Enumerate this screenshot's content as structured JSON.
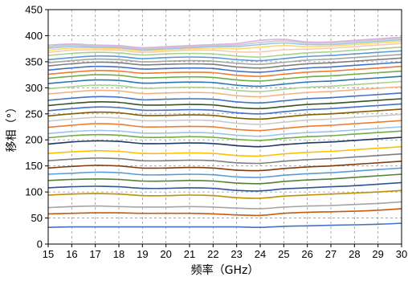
{
  "chart_data": {
    "type": "line",
    "title": "",
    "xlabel": "频率（GHz）",
    "ylabel": "移相（°）",
    "xlim": [
      15,
      30
    ],
    "ylim": [
      0,
      450
    ],
    "x_ticks": [
      15,
      16,
      17,
      18,
      19,
      20,
      21,
      22,
      23,
      24,
      25,
      26,
      27,
      28,
      29,
      30
    ],
    "y_ticks": [
      0,
      50,
      100,
      150,
      200,
      250,
      300,
      350,
      400,
      450
    ],
    "x_tick_labels": [
      "15",
      "16",
      "17",
      "18",
      "19",
      "20",
      "21",
      "22",
      "23",
      "24",
      "25",
      "26",
      "27",
      "28",
      "29",
      "30"
    ],
    "y_tick_labels": [
      "0",
      "50",
      "100",
      "150",
      "200",
      "250",
      "300",
      "350",
      "400",
      "450"
    ],
    "grid": true,
    "legend": "none",
    "x": [
      15,
      16,
      17,
      18,
      19,
      20,
      21,
      22,
      23,
      24,
      25,
      26,
      27,
      28,
      29,
      30
    ],
    "series": [
      {
        "color": "#4472c4",
        "values": [
          32,
          33,
          33,
          33,
          33,
          33,
          33,
          33,
          33,
          32,
          34,
          35,
          36,
          37,
          38,
          40
        ]
      },
      {
        "color": "#c55a11",
        "values": [
          58,
          59,
          60,
          60,
          59,
          59,
          59,
          58,
          56,
          55,
          59,
          61,
          62,
          63,
          65,
          68
        ]
      },
      {
        "color": "#a5a5a5",
        "values": [
          70,
          72,
          73,
          72,
          71,
          71,
          72,
          71,
          69,
          68,
          71,
          73,
          74,
          76,
          78,
          81
        ]
      },
      {
        "color": "#bf9000",
        "values": [
          94,
          96,
          97,
          96,
          93,
          93,
          94,
          93,
          89,
          88,
          92,
          94,
          96,
          98,
          100,
          103
        ]
      },
      {
        "color": "#2f5597",
        "values": [
          108,
          110,
          111,
          110,
          107,
          107,
          108,
          107,
          103,
          102,
          106,
          108,
          110,
          112,
          115,
          118
        ]
      },
      {
        "color": "#548235",
        "values": [
          122,
          124,
          125,
          124,
          121,
          121,
          122,
          121,
          117,
          116,
          120,
          123,
          125,
          128,
          131,
          134
        ]
      },
      {
        "color": "#5b9bd5",
        "values": [
          134,
          136,
          138,
          137,
          133,
          133,
          134,
          133,
          129,
          128,
          132,
          135,
          137,
          140,
          143,
          146
        ]
      },
      {
        "color": "#843c0c",
        "values": [
          146,
          149,
          151,
          150,
          146,
          146,
          147,
          146,
          142,
          141,
          145,
          148,
          150,
          153,
          156,
          159
        ]
      },
      {
        "color": "#7f7f7f",
        "values": [
          160,
          163,
          165,
          164,
          160,
          160,
          161,
          160,
          156,
          155,
          159,
          162,
          164,
          167,
          170,
          173
        ]
      },
      {
        "color": "#ffc000",
        "values": [
          174,
          177,
          179,
          178,
          174,
          174,
          175,
          174,
          170,
          169,
          173,
          176,
          178,
          181,
          184,
          187
        ]
      },
      {
        "color": "#1f3864",
        "values": [
          192,
          196,
          198,
          197,
          193,
          193,
          194,
          193,
          189,
          187,
          191,
          194,
          196,
          199,
          202,
          205
        ]
      },
      {
        "color": "#70ad47",
        "values": [
          204,
          208,
          210,
          209,
          205,
          205,
          206,
          205,
          201,
          199,
          203,
          206,
          208,
          211,
          214,
          217
        ]
      },
      {
        "color": "#9dc3e6",
        "values": [
          212,
          216,
          218,
          217,
          213,
          213,
          214,
          213,
          209,
          207,
          211,
          214,
          216,
          219,
          222,
          225
        ]
      },
      {
        "color": "#ed7d31",
        "values": [
          224,
          228,
          231,
          230,
          225,
          225,
          226,
          225,
          220,
          218,
          222,
          226,
          228,
          231,
          234,
          237
        ]
      },
      {
        "color": "#c9c9c9",
        "values": [
          236,
          240,
          243,
          242,
          237,
          237,
          238,
          237,
          232,
          230,
          234,
          238,
          240,
          243,
          246,
          249
        ]
      },
      {
        "color": "#806000",
        "values": [
          246,
          250,
          253,
          252,
          247,
          247,
          248,
          247,
          242,
          240,
          244,
          248,
          250,
          253,
          256,
          259
        ]
      },
      {
        "color": "#4472c4",
        "values": [
          256,
          260,
          263,
          262,
          257,
          257,
          258,
          257,
          252,
          250,
          254,
          258,
          260,
          263,
          266,
          269
        ]
      },
      {
        "color": "#375623",
        "values": [
          266,
          270,
          273,
          272,
          267,
          267,
          268,
          267,
          262,
          260,
          264,
          268,
          270,
          273,
          276,
          279
        ]
      },
      {
        "color": "#4472c4",
        "values": [
          276,
          280,
          283,
          282,
          277,
          278,
          279,
          278,
          273,
          271,
          275,
          279,
          281,
          284,
          287,
          290
        ]
      },
      {
        "color": "#f4b183",
        "values": [
          288,
          292,
          295,
          294,
          289,
          290,
          291,
          290,
          285,
          283,
          287,
          291,
          293,
          296,
          299,
          302
        ]
      },
      {
        "color": "#a9d18e",
        "values": [
          298,
          302,
          305,
          304,
          299,
          300,
          301,
          300,
          295,
          293,
          297,
          301,
          303,
          306,
          309,
          312
        ]
      },
      {
        "color": "#2e75b6",
        "values": [
          308,
          312,
          315,
          314,
          309,
          310,
          311,
          310,
          305,
          303,
          307,
          311,
          313,
          316,
          319,
          322
        ]
      },
      {
        "color": "#70ad47",
        "values": [
          318,
          322,
          325,
          324,
          319,
          320,
          321,
          320,
          315,
          313,
          317,
          321,
          323,
          326,
          329,
          332
        ]
      },
      {
        "color": "#ed7d31",
        "values": [
          326,
          330,
          333,
          332,
          328,
          329,
          330,
          329,
          324,
          322,
          326,
          330,
          332,
          335,
          338,
          341
        ]
      },
      {
        "color": "#4472c4",
        "values": [
          334,
          338,
          341,
          340,
          336,
          337,
          338,
          337,
          332,
          330,
          334,
          338,
          340,
          343,
          346,
          349
        ]
      },
      {
        "color": "#7f7f7f",
        "values": [
          342,
          346,
          349,
          348,
          344,
          345,
          346,
          345,
          340,
          338,
          342,
          346,
          348,
          351,
          354,
          357
        ]
      },
      {
        "color": "#a5a5a5",
        "values": [
          348,
          352,
          355,
          354,
          350,
          351,
          352,
          351,
          347,
          345,
          349,
          353,
          355,
          358,
          361,
          364
        ]
      },
      {
        "color": "#5b9bd5",
        "values": [
          354,
          358,
          361,
          360,
          356,
          358,
          359,
          358,
          354,
          352,
          356,
          360,
          362,
          365,
          368,
          371
        ]
      },
      {
        "color": "#a9d18e",
        "values": [
          362,
          366,
          368,
          367,
          363,
          365,
          366,
          365,
          361,
          359,
          363,
          367,
          369,
          372,
          375,
          378
        ]
      },
      {
        "color": "#f8cbad",
        "values": [
          368,
          372,
          373,
          372,
          368,
          370,
          372,
          372,
          369,
          369,
          373,
          374,
          376,
          379,
          382,
          385
        ]
      },
      {
        "color": "#ffd966",
        "values": [
          372,
          376,
          376,
          375,
          371,
          373,
          375,
          376,
          375,
          378,
          381,
          379,
          380,
          383,
          386,
          389
        ]
      },
      {
        "color": "#9dc3e6",
        "values": [
          376,
          379,
          378,
          377,
          373,
          375,
          377,
          379,
          379,
          383,
          386,
          383,
          383,
          386,
          389,
          392
        ]
      },
      {
        "color": "#c9c9c9",
        "values": [
          379,
          382,
          380,
          379,
          375,
          377,
          379,
          381,
          382,
          387,
          390,
          386,
          386,
          389,
          392,
          395
        ]
      },
      {
        "color": "#dbb2e0",
        "values": [
          382,
          384,
          382,
          381,
          377,
          379,
          381,
          383,
          385,
          391,
          393,
          388,
          388,
          391,
          394,
          397
        ]
      }
    ]
  }
}
